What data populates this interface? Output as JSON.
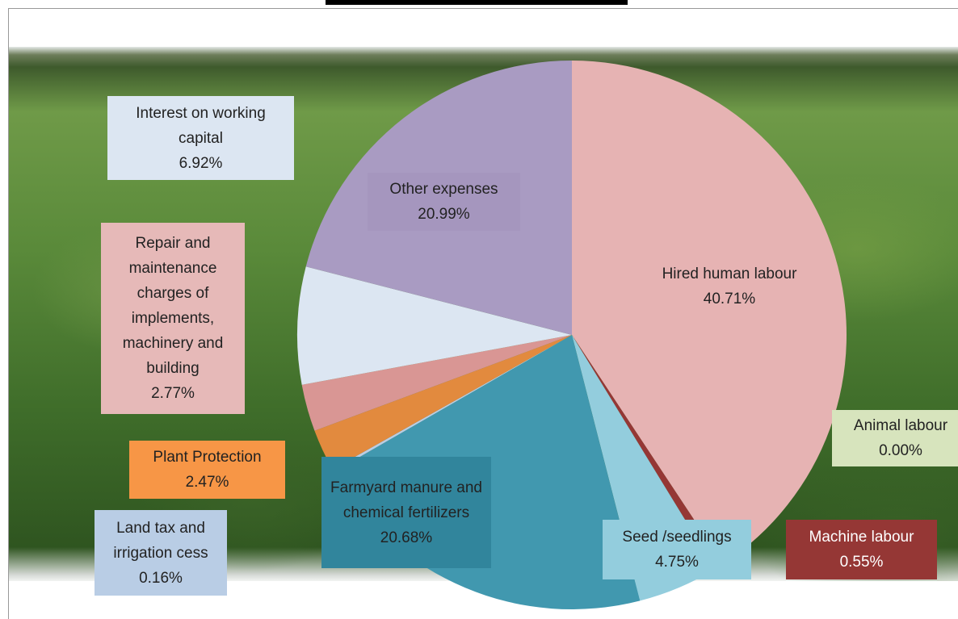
{
  "chart_data": {
    "type": "pie",
    "categories": [
      "Hired human labour",
      "Animal labour",
      "Machine labour",
      "Seed /seedlings",
      "Farmyard manure and chemical fertilizers",
      "Land tax and irrigation cess",
      "Plant Protection",
      "Repair and maintenance charges of implements, machinery and building",
      "Interest on working capital",
      "Other expenses"
    ],
    "values": [
      40.71,
      0.0,
      0.55,
      4.75,
      20.68,
      0.16,
      2.47,
      2.77,
      6.92,
      20.99
    ],
    "value_labels": [
      "40.71%",
      "0.00%",
      "0.55%",
      "4.75%",
      "20.68%",
      "0.16%",
      "2.47%",
      "2.77%",
      "6.92%",
      "20.99%"
    ],
    "colors": [
      "#e6b3b3",
      "#d7e4bd",
      "#953735",
      "#93cddd",
      "#4198af",
      "#b9cde5",
      "#e28a3e",
      "#d99694",
      "#dce6f2",
      "#a99bc2"
    ]
  }
}
